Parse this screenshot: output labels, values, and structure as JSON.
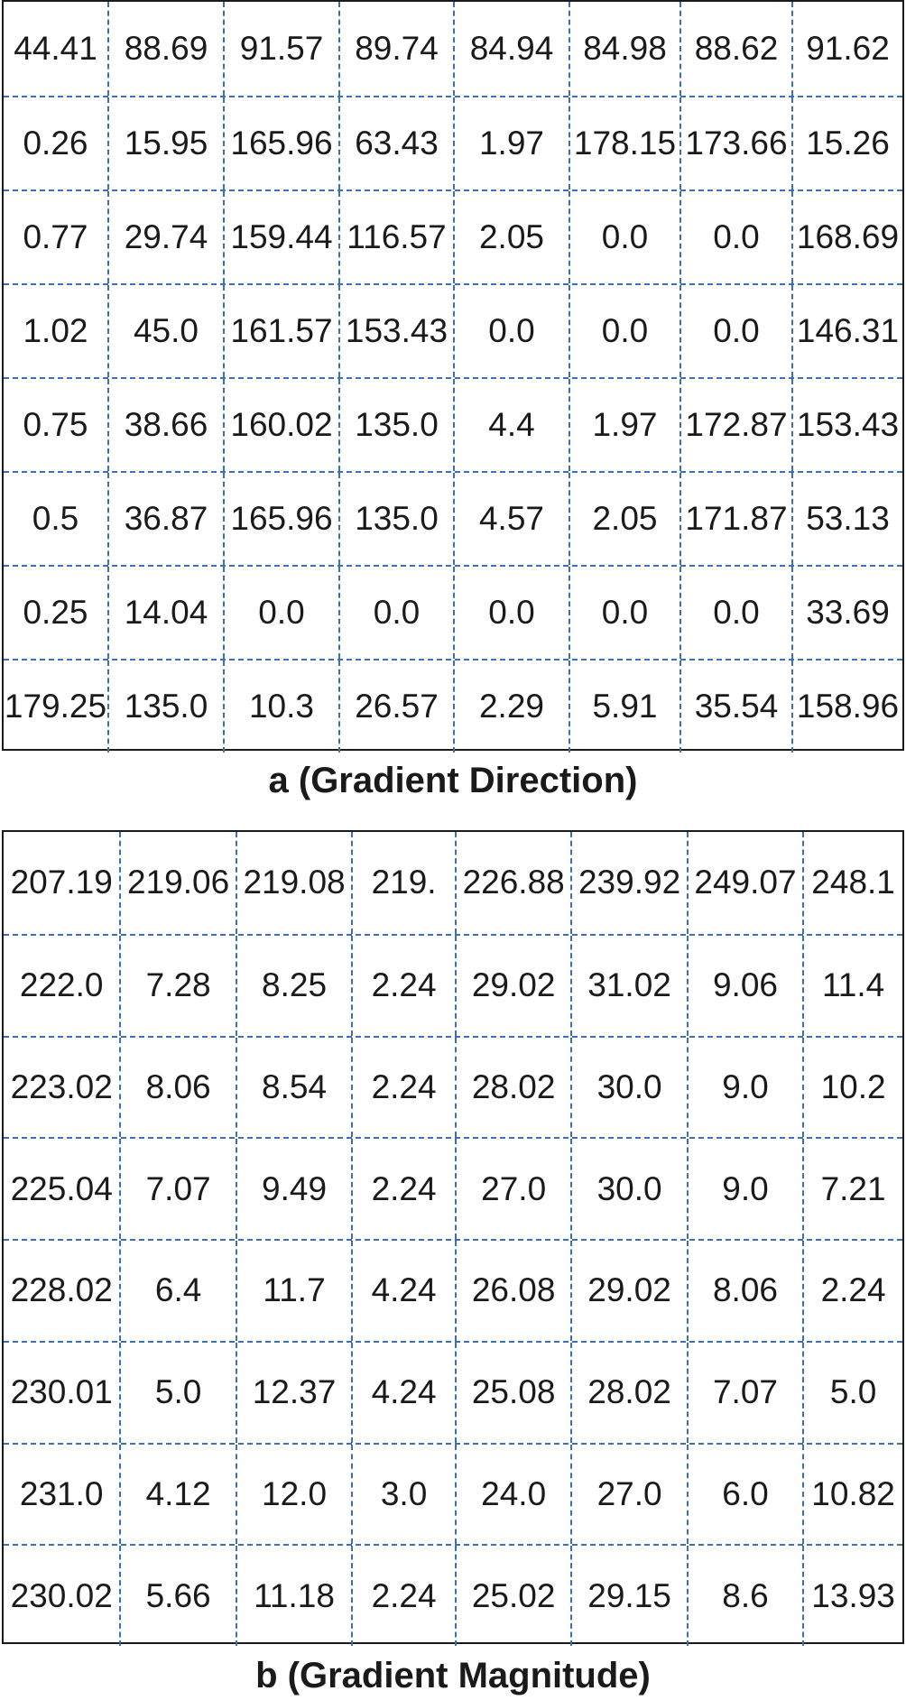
{
  "gradient_direction": {
    "caption": "a (Gradient Direction)",
    "rows": [
      [
        "44.41",
        "88.69",
        "91.57",
        "89.74",
        "84.94",
        "84.98",
        "88.62",
        "91.62"
      ],
      [
        "0.26",
        "15.95",
        "165.96",
        "63.43",
        "1.97",
        "178.15",
        "173.66",
        "15.26"
      ],
      [
        "0.77",
        "29.74",
        "159.44",
        "116.57",
        "2.05",
        "0.0",
        "0.0",
        "168.69"
      ],
      [
        "1.02",
        "45.0",
        "161.57",
        "153.43",
        "0.0",
        "0.0",
        "0.0",
        "146.31"
      ],
      [
        "0.75",
        "38.66",
        "160.02",
        "135.0",
        "4.4",
        "1.97",
        "172.87",
        "153.43"
      ],
      [
        "0.5",
        "36.87",
        "165.96",
        "135.0",
        "4.57",
        "2.05",
        "171.87",
        "53.13"
      ],
      [
        "0.25",
        "14.04",
        "0.0",
        "0.0",
        "0.0",
        "0.0",
        "0.0",
        "33.69"
      ],
      [
        "179.25",
        "135.0",
        "10.3",
        "26.57",
        "2.29",
        "5.91",
        "35.54",
        "158.96"
      ]
    ]
  },
  "gradient_magnitude": {
    "caption": "b (Gradient Magnitude)",
    "rows": [
      [
        "207.19",
        "219.06",
        "219.08",
        "219.",
        "226.88",
        "239.92",
        "249.07",
        "248.1"
      ],
      [
        "222.0",
        "7.28",
        "8.25",
        "2.24",
        "29.02",
        "31.02",
        "9.06",
        "11.4"
      ],
      [
        "223.02",
        "8.06",
        "8.54",
        "2.24",
        "28.02",
        "30.0",
        "9.0",
        "10.2"
      ],
      [
        "225.04",
        "7.07",
        "9.49",
        "2.24",
        "27.0",
        "30.0",
        "9.0",
        "7.21"
      ],
      [
        "228.02",
        "6.4",
        "11.7",
        "4.24",
        "26.08",
        "29.02",
        "8.06",
        "2.24"
      ],
      [
        "230.01",
        "5.0",
        "12.37",
        "4.24",
        "25.08",
        "28.02",
        "7.07",
        "5.0"
      ],
      [
        "231.0",
        "4.12",
        "12.0",
        "3.0",
        "24.0",
        "27.0",
        "6.0",
        "10.82"
      ],
      [
        "230.02",
        "5.66",
        "11.18",
        "2.24",
        "25.02",
        "29.15",
        "8.6",
        "13.93"
      ]
    ]
  },
  "colors": {
    "grid_border": "#1a1a1a",
    "dashed_divider": "#3b6fb6",
    "text": "#1a1a1a"
  }
}
